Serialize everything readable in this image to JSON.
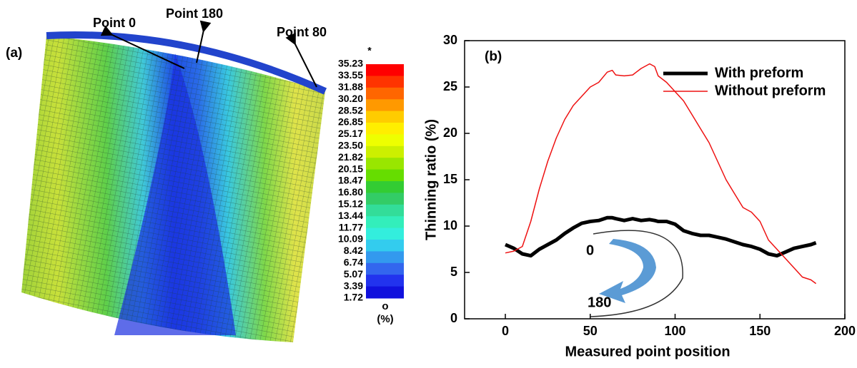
{
  "panel_a": {
    "label": "(a)",
    "points": [
      "Point 0",
      "Point 180",
      "Point 80"
    ],
    "colorbar": {
      "top_mark": "*",
      "labels": [
        "35.23",
        "33.55",
        "31.88",
        "30.20",
        "28.52",
        "26.85",
        "25.17",
        "23.50",
        "21.82",
        "20.15",
        "18.47",
        "16.80",
        "15.12",
        "13.44",
        "11.77",
        "10.09",
        "8.42",
        "6.74",
        "5.07",
        "3.39",
        "1.72"
      ],
      "colors": [
        "#ff0000",
        "#ff3300",
        "#ff6600",
        "#ff9900",
        "#ffcc00",
        "#ffee00",
        "#eeff00",
        "#ccf000",
        "#99e600",
        "#66dd00",
        "#33cc33",
        "#33cc66",
        "#33dd99",
        "#33eebb",
        "#33eedd",
        "#33ccee",
        "#3399ee",
        "#3366ee",
        "#2233ee",
        "#1111dd"
      ],
      "bottom_mark": "o",
      "unit": "(%)"
    }
  },
  "chart_data": {
    "type": "line",
    "annotations": [
      "(b)",
      "0",
      "180"
    ],
    "xlabel": "Measured point position",
    "ylabel": "Thinning ratio (%)",
    "xlim": [
      -24,
      200
    ],
    "ylim": [
      0,
      30
    ],
    "xticks": [
      0,
      50,
      100,
      150,
      200
    ],
    "yticks": [
      0,
      5,
      10,
      15,
      20,
      25,
      30
    ],
    "legend": "upper right",
    "x": [
      0,
      5,
      10,
      15,
      20,
      25,
      30,
      35,
      40,
      45,
      50,
      55,
      60,
      63,
      65,
      70,
      75,
      80,
      85,
      88,
      90,
      95,
      100,
      105,
      110,
      115,
      120,
      125,
      130,
      135,
      140,
      145,
      150,
      155,
      160,
      165,
      170,
      175,
      180,
      183
    ],
    "series": [
      {
        "name": "With preform",
        "color": "#000000",
        "width": 5,
        "values": [
          8,
          7.6,
          7,
          6.8,
          7.5,
          8,
          8.5,
          9.2,
          9.8,
          10.3,
          10.5,
          10.6,
          10.9,
          10.9,
          10.8,
          10.6,
          10.8,
          10.6,
          10.7,
          10.6,
          10.5,
          10.5,
          10.2,
          9.5,
          9.2,
          9.0,
          9.0,
          8.8,
          8.6,
          8.3,
          8.0,
          7.8,
          7.5,
          7.0,
          6.8,
          7.2,
          7.6,
          7.8,
          8.0,
          8.2
        ]
      },
      {
        "name": "Without preform",
        "color": "#ee1111",
        "width": 1.5,
        "values": [
          7.1,
          7.3,
          7.8,
          10.5,
          14,
          17,
          19.5,
          21.5,
          23,
          24,
          25,
          25.5,
          26.6,
          26.8,
          26.3,
          26.2,
          26.3,
          27,
          27.5,
          27.2,
          26.2,
          25.5,
          24.5,
          23.5,
          22,
          20.5,
          19,
          17,
          15,
          13.5,
          12,
          11.5,
          10.5,
          8.5,
          7.5,
          6.5,
          5.5,
          4.5,
          4.2,
          3.8
        ]
      }
    ]
  }
}
